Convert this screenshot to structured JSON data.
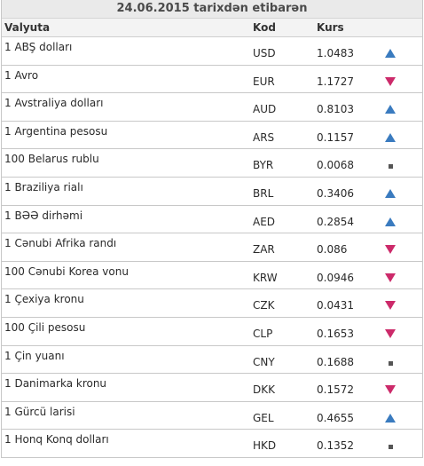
{
  "title": "24.06.2015 tarixdən etibarən",
  "columns": {
    "currency": "Valyuta",
    "code": "Kod",
    "rate": "Kurs"
  },
  "colors": {
    "up": "#3a7bbf",
    "down": "#cc2a6a",
    "same": "#555555"
  },
  "rows": [
    {
      "name": "1 ABŞ dolları",
      "code": "USD",
      "rate": "1.0483",
      "trend": "up"
    },
    {
      "name": "1 Avro",
      "code": "EUR",
      "rate": "1.1727",
      "trend": "down"
    },
    {
      "name": "1 Avstraliya dolları",
      "code": "AUD",
      "rate": "0.8103",
      "trend": "up"
    },
    {
      "name": "1 Argentina pesosu",
      "code": "ARS",
      "rate": "0.1157",
      "trend": "up"
    },
    {
      "name": "100 Belarus rublu",
      "code": "BYR",
      "rate": "0.0068",
      "trend": "same"
    },
    {
      "name": "1 Braziliya rialı",
      "code": "BRL",
      "rate": "0.3406",
      "trend": "up"
    },
    {
      "name": "1 BƏƏ dirhəmi",
      "code": "AED",
      "rate": "0.2854",
      "trend": "up"
    },
    {
      "name": "1 Cənubi Afrika randı",
      "code": "ZAR",
      "rate": "0.086",
      "trend": "down"
    },
    {
      "name": "100 Cənubi Korea vonu",
      "code": "KRW",
      "rate": "0.0946",
      "trend": "down"
    },
    {
      "name": "1 Çexiya kronu",
      "code": "CZK",
      "rate": "0.0431",
      "trend": "down"
    },
    {
      "name": "100 Çili pesosu",
      "code": "CLP",
      "rate": "0.1653",
      "trend": "down"
    },
    {
      "name": "1 Çin yuanı",
      "code": "CNY",
      "rate": "0.1688",
      "trend": "same"
    },
    {
      "name": "1 Danimarka kronu",
      "code": "DKK",
      "rate": "0.1572",
      "trend": "down"
    },
    {
      "name": "1 Gürcü larisi",
      "code": "GEL",
      "rate": "0.4655",
      "trend": "up"
    },
    {
      "name": "1 Honq Konq dolları",
      "code": "HKD",
      "rate": "0.1352",
      "trend": "same"
    }
  ]
}
